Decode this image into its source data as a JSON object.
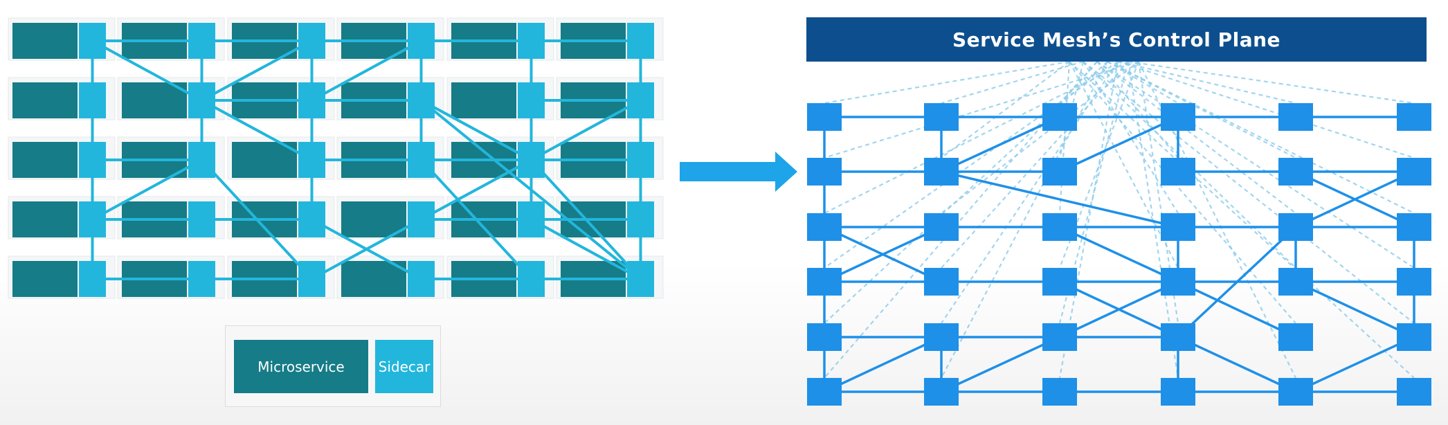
{
  "diagram": {
    "left_mesh": {
      "rows": 5,
      "cols": 6,
      "microservice_color": "#167c87",
      "sidecar_color": "#22b6dc",
      "link_color": "#22b6dc",
      "links": [
        [
          0,
          0,
          0,
          1
        ],
        [
          0,
          1,
          0,
          2
        ],
        [
          0,
          2,
          0,
          3
        ],
        [
          0,
          3,
          0,
          4
        ],
        [
          0,
          4,
          0,
          5
        ],
        [
          1,
          1,
          1,
          2
        ],
        [
          1,
          2,
          1,
          3
        ],
        [
          1,
          4,
          1,
          5
        ],
        [
          2,
          0,
          2,
          1
        ],
        [
          2,
          2,
          2,
          3
        ],
        [
          2,
          3,
          2,
          4
        ],
        [
          2,
          4,
          2,
          5
        ],
        [
          3,
          0,
          3,
          1
        ],
        [
          3,
          1,
          3,
          2
        ],
        [
          3,
          3,
          3,
          4
        ],
        [
          3,
          4,
          3,
          5
        ],
        [
          4,
          0,
          4,
          1
        ],
        [
          4,
          1,
          4,
          2
        ],
        [
          4,
          3,
          4,
          4
        ],
        [
          4,
          4,
          4,
          5
        ],
        [
          0,
          0,
          1,
          0
        ],
        [
          1,
          0,
          2,
          0
        ],
        [
          2,
          0,
          3,
          0
        ],
        [
          3,
          0,
          4,
          0
        ],
        [
          0,
          1,
          1,
          1
        ],
        [
          1,
          1,
          2,
          1
        ],
        [
          0,
          2,
          1,
          2
        ],
        [
          1,
          2,
          2,
          2
        ],
        [
          2,
          2,
          3,
          2
        ],
        [
          0,
          3,
          1,
          3
        ],
        [
          1,
          3,
          2,
          3
        ],
        [
          0,
          4,
          1,
          4
        ],
        [
          1,
          4,
          2,
          4
        ],
        [
          2,
          4,
          3,
          4
        ],
        [
          0,
          5,
          1,
          5
        ],
        [
          1,
          5,
          2,
          5
        ],
        [
          2,
          5,
          3,
          5
        ],
        [
          3,
          5,
          4,
          5
        ],
        [
          0,
          0,
          1,
          1
        ],
        [
          1,
          1,
          2,
          2
        ],
        [
          1,
          1,
          0,
          2
        ],
        [
          1,
          2,
          0,
          3
        ],
        [
          2,
          3,
          1,
          3
        ],
        [
          1,
          3,
          2,
          4
        ],
        [
          2,
          1,
          3,
          0
        ],
        [
          2,
          1,
          4,
          2
        ],
        [
          4,
          2,
          3,
          3
        ],
        [
          3,
          3,
          2,
          4
        ],
        [
          2,
          4,
          1,
          5
        ],
        [
          3,
          2,
          4,
          3
        ],
        [
          2,
          3,
          4,
          4
        ],
        [
          3,
          4,
          4,
          5
        ],
        [
          2,
          4,
          4,
          5
        ],
        [
          1,
          3,
          4,
          5
        ]
      ]
    },
    "arrow_color": "#1ea4e8",
    "legend": {
      "microservice_label": "Microservice",
      "sidecar_label": "Sidecar"
    },
    "right_mesh": {
      "control_plane_title": "Service Mesh’s Control Plane",
      "header_color": "#0d4f8e",
      "node_color": "#1e90e8",
      "dash_color": "#8ccbea",
      "rows": 6,
      "cols": 6,
      "links": [
        [
          0,
          0,
          0,
          1
        ],
        [
          0,
          1,
          0,
          2
        ],
        [
          0,
          2,
          0,
          3
        ],
        [
          0,
          3,
          0,
          4
        ],
        [
          0,
          4,
          0,
          5
        ],
        [
          1,
          0,
          1,
          1
        ],
        [
          1,
          4,
          1,
          5
        ],
        [
          3,
          0,
          3,
          1
        ],
        [
          3,
          2,
          3,
          3
        ],
        [
          3,
          4,
          3,
          5
        ],
        [
          4,
          2,
          4,
          3
        ],
        [
          5,
          2,
          5,
          3
        ],
        [
          5,
          3,
          5,
          4
        ],
        [
          0,
          0,
          1,
          0
        ],
        [
          1,
          0,
          2,
          0
        ],
        [
          2,
          0,
          3,
          0
        ],
        [
          3,
          0,
          4,
          0
        ],
        [
          4,
          0,
          5,
          0
        ],
        [
          0,
          1,
          1,
          1
        ],
        [
          1,
          1,
          2,
          1
        ],
        [
          3,
          1,
          4,
          1
        ],
        [
          4,
          1,
          5,
          1
        ],
        [
          0,
          2,
          1,
          2
        ],
        [
          1,
          2,
          2,
          2
        ],
        [
          2,
          2,
          3,
          2
        ],
        [
          3,
          2,
          4,
          2
        ],
        [
          4,
          2,
          5,
          2
        ],
        [
          0,
          3,
          1,
          3
        ],
        [
          1,
          3,
          2,
          3
        ],
        [
          2,
          3,
          3,
          3
        ],
        [
          3,
          3,
          4,
          3
        ],
        [
          4,
          3,
          5,
          3
        ],
        [
          0,
          4,
          1,
          4
        ],
        [
          1,
          4,
          2,
          4
        ],
        [
          2,
          4,
          3,
          4
        ],
        [
          0,
          5,
          1,
          5
        ],
        [
          1,
          5,
          2,
          5
        ],
        [
          2,
          5,
          3,
          5
        ],
        [
          3,
          5,
          4,
          5
        ],
        [
          4,
          5,
          5,
          5
        ],
        [
          0,
          2,
          1,
          3
        ],
        [
          1,
          2,
          0,
          3
        ],
        [
          1,
          1,
          2,
          0
        ],
        [
          2,
          1,
          3,
          0
        ],
        [
          1,
          1,
          3,
          2
        ],
        [
          2,
          2,
          3,
          3
        ],
        [
          3,
          3,
          2,
          4
        ],
        [
          2,
          4,
          1,
          5
        ],
        [
          1,
          4,
          0,
          5
        ],
        [
          2,
          3,
          3,
          4
        ],
        [
          3,
          4,
          4,
          5
        ],
        [
          4,
          3,
          5,
          4
        ],
        [
          5,
          4,
          4,
          5
        ],
        [
          4,
          1,
          5,
          2
        ],
        [
          4,
          2,
          5,
          1
        ],
        [
          3,
          3,
          4,
          4
        ],
        [
          4,
          2,
          3,
          4
        ]
      ]
    }
  }
}
